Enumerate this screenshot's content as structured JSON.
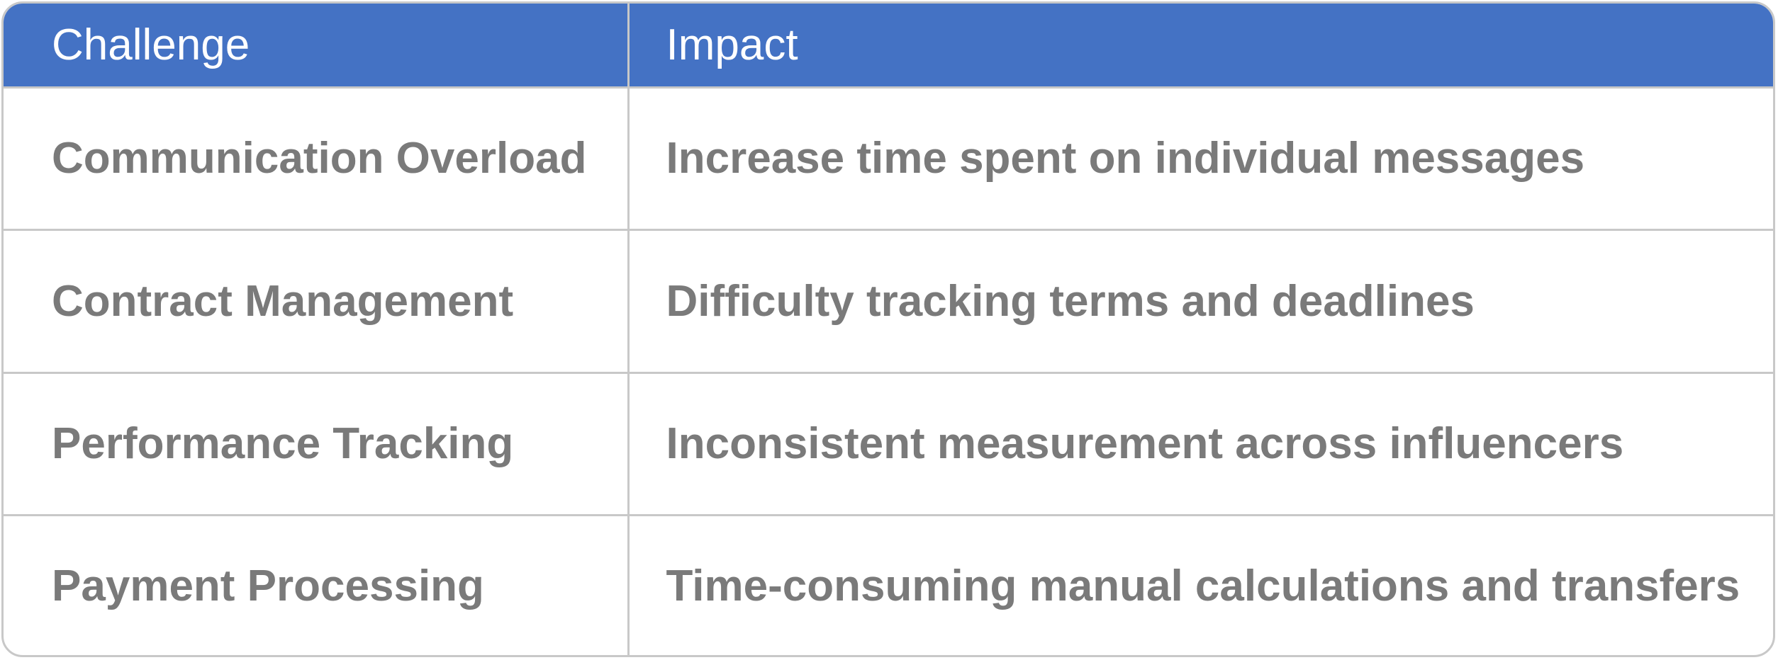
{
  "table": {
    "headers": [
      "Challenge",
      "Impact"
    ],
    "rows": [
      {
        "challenge": "Communication Overload",
        "impact": "Increase time spent on individual messages"
      },
      {
        "challenge": "Contract Management",
        "impact": "Difficulty tracking terms and deadlines"
      },
      {
        "challenge": "Performance Tracking",
        "impact": "Inconsistent measurement across influencers"
      },
      {
        "challenge": "Payment Processing",
        "impact": "Time-consuming manual calculations and transfers"
      }
    ]
  },
  "colors": {
    "header_bg": "#4472c4",
    "header_text": "#ffffff",
    "body_text": "#7a7a7a",
    "border": "#c8c8c8"
  }
}
